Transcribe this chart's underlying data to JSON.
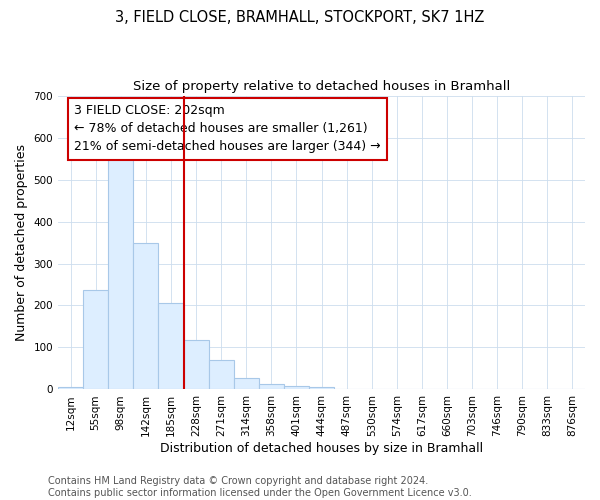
{
  "title": "3, FIELD CLOSE, BRAMHALL, STOCKPORT, SK7 1HZ",
  "subtitle": "Size of property relative to detached houses in Bramhall",
  "xlabel": "Distribution of detached houses by size in Bramhall",
  "ylabel": "Number of detached properties",
  "footnote": "Contains HM Land Registry data © Crown copyright and database right 2024.\nContains public sector information licensed under the Open Government Licence v3.0.",
  "annotation_title": "3 FIELD CLOSE: 202sqm",
  "annotation_line1": "← 78% of detached houses are smaller (1,261)",
  "annotation_line2": "21% of semi-detached houses are larger (344) →",
  "categories": [
    "12sqm",
    "55sqm",
    "98sqm",
    "142sqm",
    "185sqm",
    "228sqm",
    "271sqm",
    "314sqm",
    "358sqm",
    "401sqm",
    "444sqm",
    "487sqm",
    "530sqm",
    "574sqm",
    "617sqm",
    "660sqm",
    "703sqm",
    "746sqm",
    "790sqm",
    "833sqm",
    "876sqm"
  ],
  "values": [
    5,
    238,
    583,
    350,
    205,
    118,
    70,
    27,
    14,
    8,
    5,
    1,
    1,
    0,
    0,
    0,
    0,
    0,
    0,
    0,
    0
  ],
  "bar_color": "#ddeeff",
  "bar_edge_color": "#a8c8e8",
  "vline_color": "#cc0000",
  "annotation_box_color": "#cc0000",
  "vline_x_index": 4.5,
  "ylim": [
    0,
    700
  ],
  "yticks": [
    0,
    100,
    200,
    300,
    400,
    500,
    600,
    700
  ],
  "grid_color": "#ccddee",
  "title_fontsize": 10.5,
  "subtitle_fontsize": 9.5,
  "axis_label_fontsize": 9,
  "tick_fontsize": 7.5,
  "annotation_fontsize": 9,
  "footnote_fontsize": 7
}
